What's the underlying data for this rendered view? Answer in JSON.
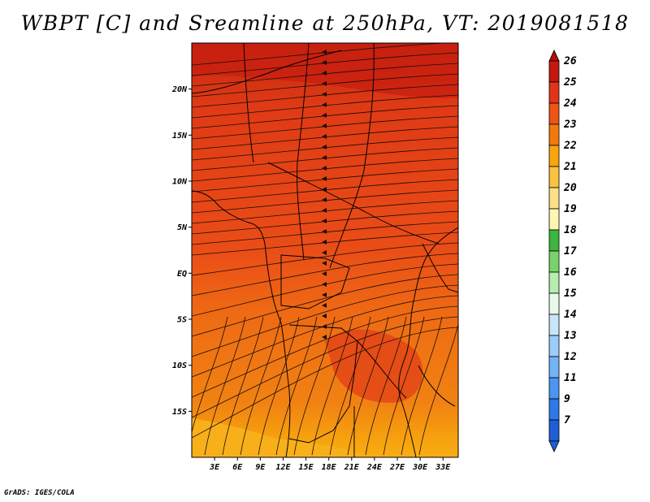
{
  "title": "WBPT [C] and Sreamline at 250hPa, VT: 2019081518",
  "credit": "GrADS: IGES/COLA",
  "map": {
    "lat_ticks": [
      {
        "value": 20,
        "label": "20N"
      },
      {
        "value": 15,
        "label": "15N"
      },
      {
        "value": 10,
        "label": "10N"
      },
      {
        "value": 5,
        "label": "5N"
      },
      {
        "value": 0,
        "label": "EQ"
      },
      {
        "value": -5,
        "label": "5S"
      },
      {
        "value": -10,
        "label": "10S"
      },
      {
        "value": -15,
        "label": "15S"
      }
    ],
    "lon_ticks": [
      {
        "value": 3,
        "label": "3E"
      },
      {
        "value": 6,
        "label": "6E"
      },
      {
        "value": 9,
        "label": "9E"
      },
      {
        "value": 12,
        "label": "12E"
      },
      {
        "value": 15,
        "label": "15E"
      },
      {
        "value": 18,
        "label": "18E"
      },
      {
        "value": 21,
        "label": "21E"
      },
      {
        "value": 24,
        "label": "24E"
      },
      {
        "value": 27,
        "label": "27E"
      },
      {
        "value": 30,
        "label": "30E"
      },
      {
        "value": 33,
        "label": "33E"
      }
    ],
    "lon_range": [
      0,
      35
    ],
    "lat_range": [
      -20,
      25
    ]
  },
  "colorbar": {
    "levels": [
      {
        "label": "7",
        "color": "#1f5fd6"
      },
      {
        "label": "9",
        "color": "#2e78e8"
      },
      {
        "label": "11",
        "color": "#4a96f2"
      },
      {
        "label": "12",
        "color": "#72b4f7"
      },
      {
        "label": "13",
        "color": "#9ccdfa"
      },
      {
        "label": "14",
        "color": "#c7e6fb"
      },
      {
        "label": "15",
        "color": "#e9f9ea"
      },
      {
        "label": "16",
        "color": "#b6edb0"
      },
      {
        "label": "17",
        "color": "#79d36c"
      },
      {
        "label": "18",
        "color": "#3cb63c"
      },
      {
        "label": "19",
        "color": "#fff6b2"
      },
      {
        "label": "20",
        "color": "#fde08a"
      },
      {
        "label": "21",
        "color": "#fbc23f"
      },
      {
        "label": "22",
        "color": "#f9a50e"
      },
      {
        "label": "23",
        "color": "#f27a0d"
      },
      {
        "label": "24",
        "color": "#ee5416"
      },
      {
        "label": "25",
        "color": "#e3341a"
      },
      {
        "label": "26",
        "color": "#c5170f"
      }
    ],
    "top_color": "#b0100b"
  }
}
